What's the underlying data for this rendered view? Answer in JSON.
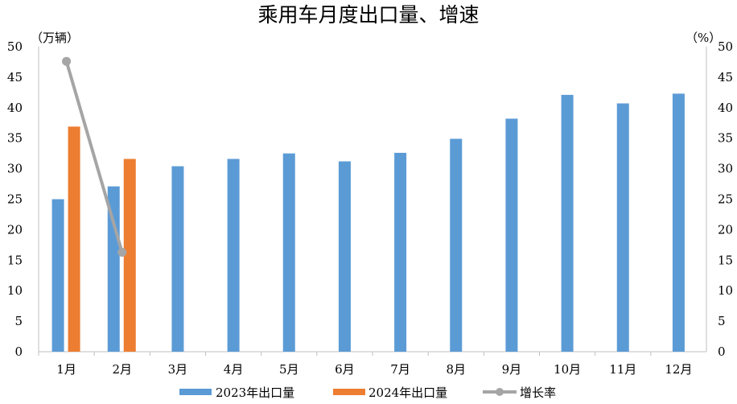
{
  "chart_data": {
    "type": "bar",
    "title": "乘用车月度出口量、增速",
    "ylabel_left": "（万辆）",
    "ylabel_right": "（%）",
    "categories": [
      "1月",
      "2月",
      "3月",
      "4月",
      "5月",
      "6月",
      "7月",
      "8月",
      "9月",
      "10月",
      "11月",
      "12月"
    ],
    "ylim_left": [
      0,
      50
    ],
    "ylim_right": [
      0,
      50
    ],
    "yticks_left": [
      "0",
      "5",
      "10",
      "15",
      "20",
      "25",
      "30",
      "35",
      "40",
      "45",
      "50"
    ],
    "yticks_right": [
      "0",
      "5",
      "10",
      "15",
      "20",
      "25",
      "30",
      "35",
      "40",
      "45",
      "50"
    ],
    "grid": false,
    "legend_position": "bottom",
    "series": [
      {
        "name": "2023年出口量",
        "type": "bar",
        "axis": "left",
        "color": "#5B9BD5",
        "values": [
          25.0,
          27.1,
          30.4,
          31.6,
          32.5,
          31.2,
          32.6,
          34.9,
          38.2,
          42.1,
          40.7,
          42.3
        ]
      },
      {
        "name": "2024年出口量",
        "type": "bar",
        "axis": "left",
        "color": "#ED7D31",
        "values": [
          36.9,
          31.6,
          null,
          null,
          null,
          null,
          null,
          null,
          null,
          null,
          null,
          null
        ]
      },
      {
        "name": "增长率",
        "type": "line",
        "axis": "right",
        "color": "#A5A5A5",
        "values": [
          47.6,
          16.3,
          null,
          null,
          null,
          null,
          null,
          null,
          null,
          null,
          null,
          null
        ]
      }
    ]
  }
}
